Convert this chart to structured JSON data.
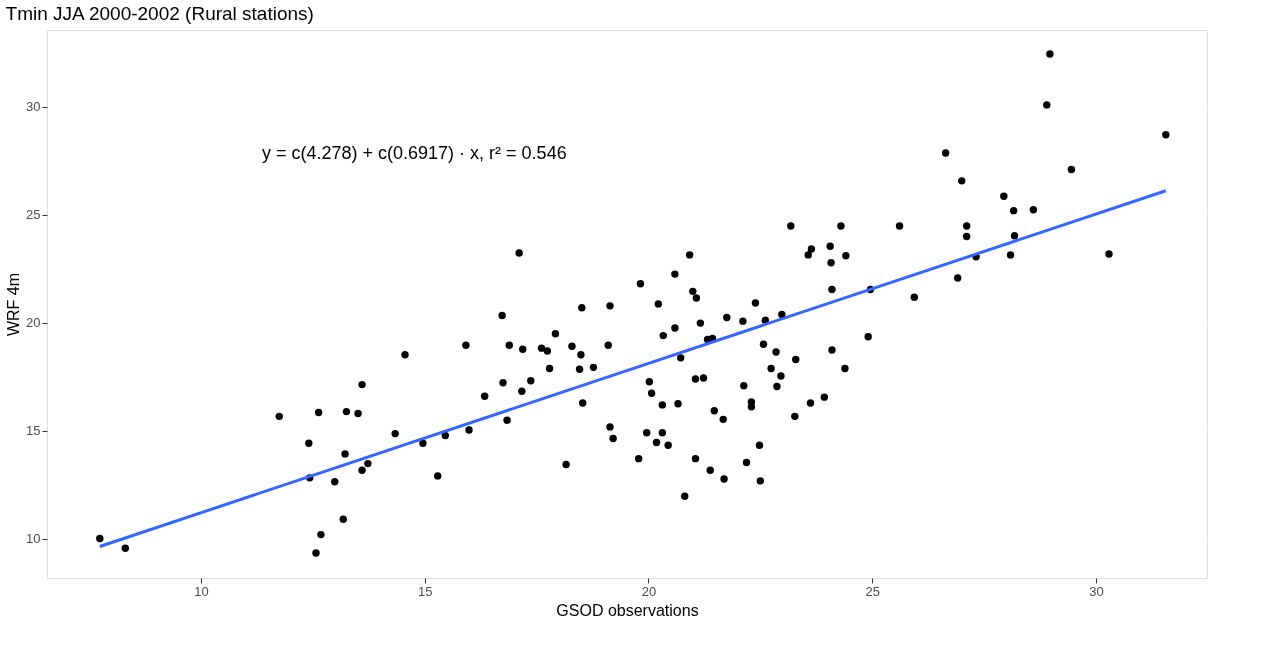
{
  "chart_data": {
    "type": "scatter",
    "title": "Tmin JJA 2000-2002 (Rural stations)",
    "xlabel": "GSOD observations",
    "ylabel": "WRF 4m",
    "xlim": [
      6.56,
      32.48
    ],
    "ylim": [
      8.17,
      33.56
    ],
    "xticks": [
      10,
      15,
      20,
      25,
      30
    ],
    "yticks": [
      10,
      15,
      20,
      25,
      30
    ],
    "grid": true,
    "marker": "circle",
    "annotations": [
      "y = c(4.278) + c(0.6917) · x,  r² = 0.546"
    ],
    "series": [
      {
        "type": "scatter",
        "color": "#000000",
        "x": [
          7.74,
          8.31,
          11.75,
          12.41,
          12.43,
          12.63,
          12.68,
          12.57,
          12.99,
          13.18,
          13.22,
          13.25,
          13.51,
          13.6,
          13.6,
          13.73,
          14.34,
          14.56,
          14.96,
          15.29,
          15.46,
          15.92,
          15.99,
          16.34,
          16.73,
          16.75,
          16.84,
          16.89,
          17.11,
          17.17,
          17.19,
          17.37,
          17.61,
          17.74,
          17.79,
          17.92,
          18.16,
          18.29,
          18.49,
          18.51,
          18.46,
          18.53,
          18.77,
          19.1,
          19.14,
          19.14,
          19.21,
          19.78,
          19.82,
          19.96,
          20.02,
          20.07,
          20.22,
          20.18,
          20.31,
          20.31,
          20.33,
          20.44,
          20.59,
          20.59,
          20.66,
          20.72,
          20.81,
          20.92,
          20.99,
          21.05,
          21.05,
          21.07,
          21.16,
          21.23,
          21.32,
          21.38,
          21.43,
          21.47,
          21.67,
          21.69,
          21.75,
          22.11,
          22.13,
          22.19,
          22.3,
          22.3,
          22.39,
          22.48,
          22.5,
          22.57,
          22.61,
          22.74,
          22.85,
          22.87,
          22.96,
          22.98,
          23.18,
          23.27,
          23.29,
          23.57,
          23.62,
          23.64,
          23.93,
          24.06,
          24.08,
          24.1,
          24.1,
          24.3,
          24.41,
          24.39,
          24.91,
          24.96,
          25.61,
          25.94,
          26.64,
          26.91,
          27.0,
          27.11,
          27.11,
          27.32,
          27.94,
          28.09,
          28.16,
          28.18,
          28.6,
          28.9,
          28.97,
          29.45,
          30.29,
          31.56
        ],
        "values": [
          10.0,
          9.55,
          15.66,
          14.41,
          12.81,
          15.84,
          10.18,
          9.33,
          12.63,
          10.89,
          13.92,
          15.88,
          15.79,
          17.13,
          13.16,
          13.47,
          14.86,
          18.51,
          14.41,
          12.9,
          14.77,
          18.95,
          15.03,
          16.59,
          20.33,
          17.22,
          15.48,
          18.95,
          23.23,
          16.82,
          18.77,
          17.31,
          18.82,
          18.69,
          17.88,
          19.49,
          13.43,
          18.91,
          18.51,
          20.69,
          17.84,
          16.28,
          17.93,
          18.95,
          20.78,
          15.17,
          14.63,
          13.7,
          21.8,
          14.9,
          17.26,
          16.73,
          20.87,
          14.45,
          16.19,
          14.9,
          19.4,
          14.32,
          22.25,
          19.75,
          16.24,
          18.37,
          11.96,
          23.14,
          21.45,
          13.7,
          17.39,
          21.14,
          19.98,
          17.44,
          19.22,
          13.16,
          19.27,
          15.92,
          15.52,
          12.76,
          20.24,
          20.07,
          17.08,
          13.52,
          16.1,
          16.33,
          20.91,
          14.32,
          12.67,
          19.0,
          20.11,
          17.88,
          18.64,
          17.04,
          17.53,
          20.38,
          24.48,
          15.66,
          18.29,
          23.14,
          16.28,
          23.41,
          16.55,
          23.54,
          22.78,
          21.54,
          18.73,
          24.48,
          23.1,
          17.88,
          19.35,
          21.54,
          24.48,
          21.18,
          27.86,
          22.07,
          26.57,
          24.48,
          23.99,
          23.05,
          25.86,
          23.14,
          25.19,
          24.03,
          25.23,
          30.09,
          32.45,
          27.1,
          23.18,
          28.71
        ]
      },
      {
        "type": "line",
        "color": "#3366ff",
        "line_style": "solid",
        "marker": "none",
        "x": [
          7.74,
          31.56
        ],
        "values": [
          9.63,
          26.11
        ]
      }
    ]
  }
}
